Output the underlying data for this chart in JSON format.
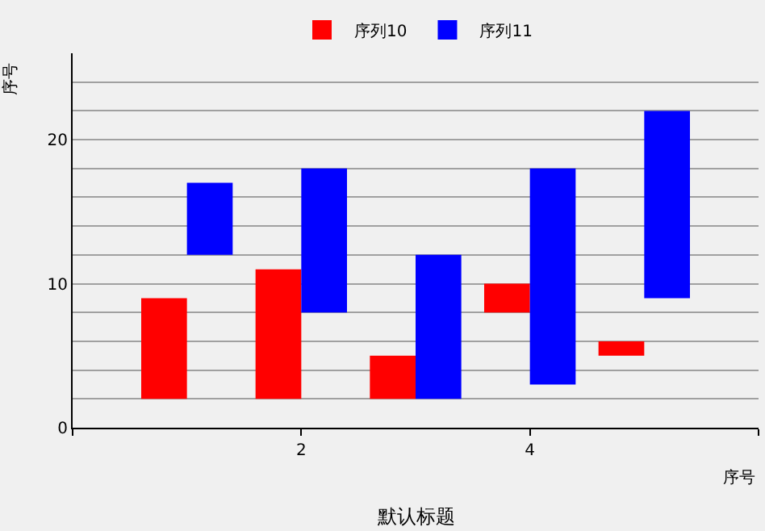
{
  "chart_data": {
    "type": "bar",
    "title": "默认标题",
    "xlabel": "序号",
    "ylabel": "序号",
    "x": [
      1,
      2,
      3,
      4,
      5
    ],
    "series": [
      {
        "name": "序列10",
        "color": "#ff0000",
        "values": [
          7,
          9,
          3,
          2,
          1
        ],
        "base": [
          2,
          2,
          2,
          8,
          5
        ]
      },
      {
        "name": "序列11",
        "color": "#0000ff",
        "values": [
          5,
          10,
          10,
          15,
          13
        ],
        "base": [
          12,
          8,
          2,
          3,
          9
        ]
      }
    ],
    "xlim": [
      0,
      6
    ],
    "xticks": [
      {
        "value": 0,
        "label": null
      },
      2,
      4,
      {
        "value": 6,
        "label": null
      }
    ],
    "ylim": [
      0,
      26
    ],
    "yticks": [
      0,
      {
        "value": 2,
        "label": null
      },
      {
        "value": 4,
        "label": null
      },
      {
        "value": 6,
        "label": null
      },
      {
        "value": 8,
        "label": null
      },
      10,
      {
        "value": 12,
        "label": null
      },
      {
        "value": 14,
        "label": null
      },
      {
        "value": 16,
        "label": null
      },
      {
        "value": 18,
        "label": null
      },
      20,
      {
        "value": 22,
        "label": null
      },
      {
        "value": 24,
        "label": null
      }
    ],
    "grid": "y",
    "legend": "top"
  }
}
